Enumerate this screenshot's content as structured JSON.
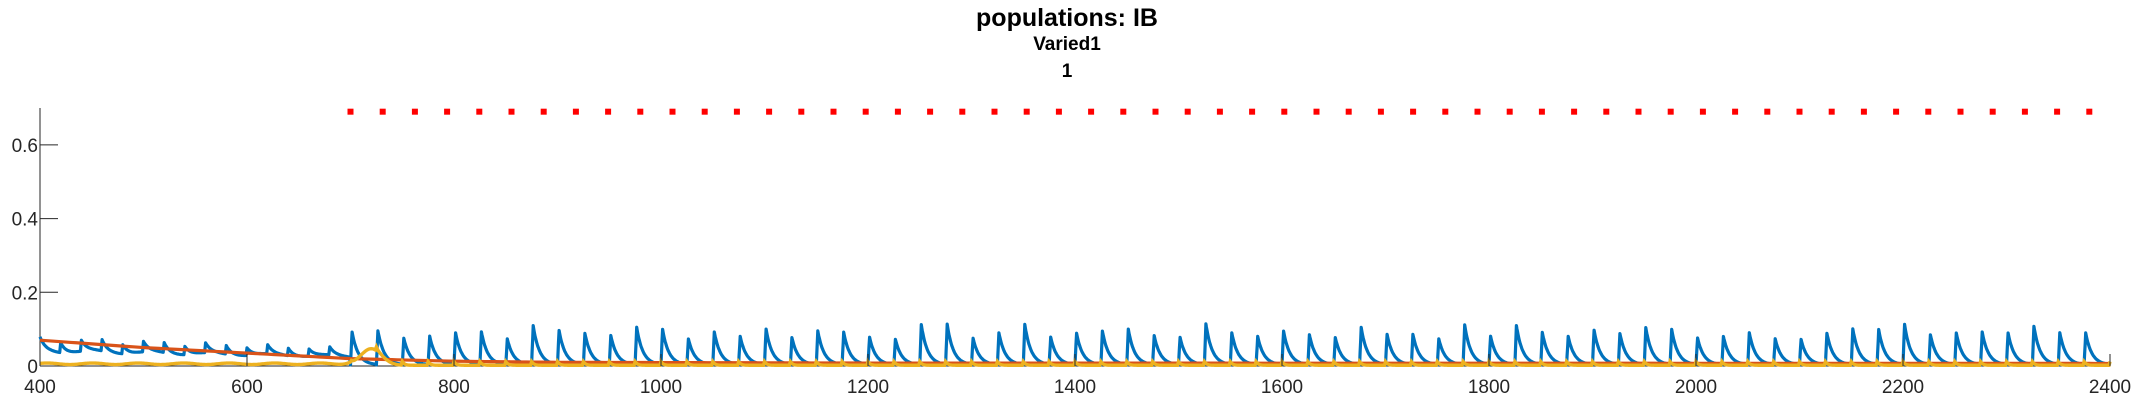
{
  "chart_data": {
    "type": "line",
    "title": "populations: IB",
    "subtitle": "Varied1",
    "subtitle2": "1",
    "xlabel": "",
    "ylabel": "",
    "xlim": [
      400,
      2400
    ],
    "ylim": [
      0,
      0.7
    ],
    "x_ticks": [
      400,
      600,
      800,
      1000,
      1200,
      1400,
      1600,
      1800,
      2000,
      2200,
      2400
    ],
    "y_ticks": [
      0,
      0.2,
      0.4,
      0.6
    ],
    "y_tick_labels": [
      "0",
      "0.2",
      "0.4",
      "0.6"
    ],
    "grid": false,
    "legend": "none",
    "series": [
      {
        "color": "#0072BD",
        "style": "line",
        "baseline": 0.003,
        "early_phase": {
          "x_range": [
            400,
            700
          ],
          "spike_period": 20,
          "spike_peak_start": 0.08,
          "spike_peak_end": 0.05,
          "decay": 5
        },
        "late_phase": {
          "x_range": [
            700,
            2400
          ],
          "spike_period": 25,
          "spike_peak_range": [
            0.07,
            0.115
          ],
          "decay": 6
        }
      },
      {
        "color": "#D95319",
        "style": "line",
        "points": [
          [
            400,
            0.07
          ],
          [
            500,
            0.05
          ],
          [
            600,
            0.035
          ],
          [
            700,
            0.02
          ],
          [
            800,
            0.013
          ],
          [
            900,
            0.01
          ],
          [
            1200,
            0.008
          ],
          [
            2400,
            0.007
          ]
        ]
      },
      {
        "color": "#EDB120",
        "style": "line",
        "baseline": 0.002,
        "small_spike_period": 25,
        "small_spike_peak": 0.012,
        "bump": {
          "x_center": 720,
          "peak": 0.045
        }
      },
      {
        "color": "#FF0000",
        "style": "dotted",
        "y": 0.69,
        "x_range": [
          700,
          2380
        ]
      }
    ]
  }
}
